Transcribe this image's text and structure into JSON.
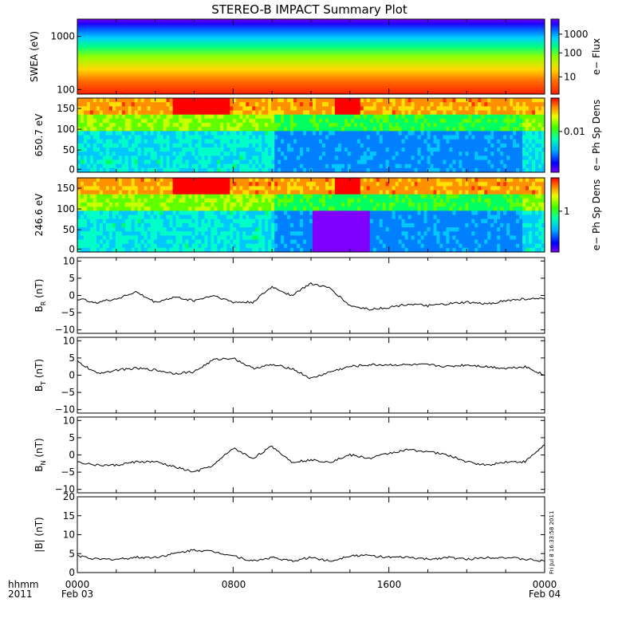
{
  "title": "STEREO-B IMPACT Summary Plot",
  "footer": {
    "left_line1": "hhmm",
    "left_line2": "2011",
    "start_time": "0000",
    "start_date": "Feb 03",
    "tick_mid1": "0800",
    "tick_mid2": "1600",
    "end_time": "0000",
    "end_date": "Feb 04"
  },
  "timestamp_note": "Fri Jul 8 16:33:58 2011",
  "colors": {
    "spectrum": [
      "#7f00ff",
      "#0000ff",
      "#0080ff",
      "#00c8ff",
      "#00ffc8",
      "#00ff60",
      "#60ff00",
      "#c8ff00",
      "#ffe000",
      "#ff9000",
      "#ff3000",
      "#ff0000"
    ],
    "line": "#000000",
    "frame": "#000000"
  },
  "chart_data": [
    {
      "type": "heatmap",
      "ylabel": "SWEA (eV)",
      "y_scale": "log",
      "ylim": [
        100,
        2000
      ],
      "yticks": [
        "100",
        "1000"
      ],
      "colorbar_label": "e− Flux",
      "colorbar_ticks": [
        "10",
        "100",
        "1000"
      ],
      "colorbar_scale": "log",
      "description_rows": "energy increases upward; flux high (red) at low energy, low (blue/purple) near 2000 eV, uniform in time"
    },
    {
      "type": "heatmap",
      "ylabel": "650.7 eV",
      "ylim": [
        0,
        180
      ],
      "yticks": [
        "0",
        "50",
        "100",
        "150"
      ],
      "colorbar_label": "e− Ph Sp Dens",
      "colorbar_ticks": [
        "0.01"
      ]
    },
    {
      "type": "heatmap",
      "ylabel": "246.6 eV",
      "ylim": [
        0,
        180
      ],
      "yticks": [
        "0",
        "50",
        "100",
        "150"
      ],
      "colorbar_label": "e− Ph Sp Dens",
      "colorbar_ticks": [
        "1"
      ]
    },
    {
      "type": "line",
      "ylabel": "B_R (nT)",
      "ylim": [
        -11,
        11
      ],
      "yticks": [
        "−10",
        "−5",
        "0",
        "5",
        "10"
      ],
      "x": [
        0,
        1,
        2,
        3,
        4,
        5,
        6,
        7,
        8,
        9,
        10,
        11,
        12,
        13,
        14,
        15,
        16,
        17,
        18,
        19,
        20,
        21,
        22,
        23,
        24
      ],
      "values": [
        -1,
        -2,
        -1,
        1,
        -2,
        -0.5,
        -1.5,
        0,
        -2,
        -2,
        2.5,
        0,
        3.5,
        2,
        -3,
        -4,
        -3.5,
        -2.5,
        -3,
        -2.5,
        -2,
        -2.5,
        -1.5,
        -1,
        -1
      ]
    },
    {
      "type": "line",
      "ylabel": "B_T (nT)",
      "ylim": [
        -11,
        11
      ],
      "yticks": [
        "−10",
        "−5",
        "0",
        "5",
        "10"
      ],
      "x": [
        0,
        1,
        2,
        3,
        4,
        5,
        6,
        7,
        8,
        9,
        10,
        11,
        12,
        13,
        14,
        15,
        16,
        17,
        18,
        19,
        20,
        21,
        22,
        23,
        24
      ],
      "values": [
        4,
        0.5,
        1.5,
        2,
        1.5,
        0.5,
        1,
        4.5,
        5,
        2,
        3,
        2,
        -1,
        1,
        2.5,
        3,
        3,
        3,
        3,
        2.5,
        3,
        2.5,
        2,
        2.5,
        0
      ]
    },
    {
      "type": "line",
      "ylabel": "B_N (nT)",
      "ylim": [
        -11,
        11
      ],
      "yticks": [
        "−10",
        "−5",
        "0",
        "5",
        "10"
      ],
      "x": [
        0,
        1,
        2,
        3,
        4,
        5,
        6,
        7,
        8,
        9,
        10,
        11,
        12,
        13,
        14,
        15,
        16,
        17,
        18,
        19,
        20,
        21,
        22,
        23,
        24
      ],
      "values": [
        -2,
        -3,
        -3,
        -2,
        -2,
        -3.5,
        -5,
        -3,
        2,
        -1,
        2.5,
        -2,
        -1.5,
        -2,
        0,
        -1,
        0.5,
        1.5,
        1,
        0,
        -2,
        -3,
        -2,
        -2,
        3
      ]
    },
    {
      "type": "line",
      "ylabel": "|B| (nT)",
      "ylim": [
        0,
        20
      ],
      "yticks": [
        "0",
        "5",
        "10",
        "15",
        "20"
      ],
      "x": [
        0,
        1,
        2,
        3,
        4,
        5,
        6,
        7,
        8,
        9,
        10,
        11,
        12,
        13,
        14,
        15,
        16,
        17,
        18,
        19,
        20,
        21,
        22,
        23,
        24
      ],
      "values": [
        4.5,
        3.5,
        3.5,
        4,
        4,
        5,
        6,
        5.5,
        4.5,
        3,
        4,
        3,
        4,
        3,
        4.5,
        4.5,
        4,
        4,
        3.5,
        4,
        3.5,
        4,
        4,
        3.5,
        3
      ]
    }
  ]
}
